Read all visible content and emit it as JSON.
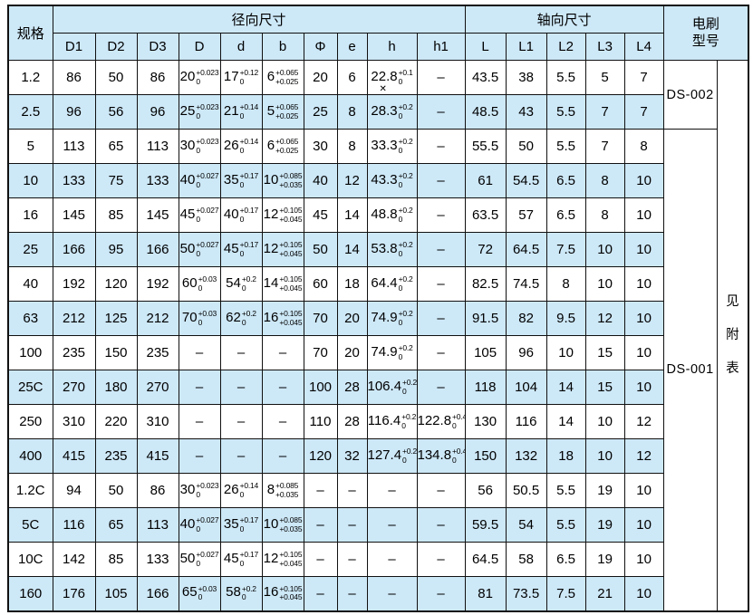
{
  "table": {
    "header": {
      "spec_label": "规格",
      "radial_label": "径向尺寸",
      "axial_label": "轴向尺寸",
      "brush_label_line1": "电刷",
      "brush_label_line2": "型号",
      "radial_cols": [
        "D1",
        "D2",
        "D3",
        "D",
        "d",
        "b",
        "Φ",
        "e",
        "h",
        "h1"
      ],
      "axial_cols": [
        "L",
        "L1",
        "L2",
        "L3",
        "L4"
      ]
    },
    "brush": {
      "groups": [
        {
          "model": "DS-002",
          "from_row": 0,
          "row_count": 2
        },
        {
          "model": "DS-001",
          "from_row": 2,
          "row_count": 14
        }
      ],
      "note_vertical": [
        "见",
        "附",
        "表"
      ]
    },
    "rows": [
      {
        "spec": "1.2",
        "cells": [
          "86",
          "50",
          "86",
          {
            "v": "20",
            "sup": "+0.023",
            "sub": "0"
          },
          {
            "v": "17",
            "sup": "+0.12",
            "sub": "0"
          },
          {
            "v": "6",
            "sup": "+0.065",
            "sub": "+0.025"
          },
          "20",
          "6",
          {
            "v": "22.8",
            "sup": "+0.1",
            "sub": "0",
            "marker": "✕"
          },
          "–",
          "43.5",
          "38",
          "5.5",
          "5",
          "7"
        ]
      },
      {
        "spec": "2.5",
        "cells": [
          "96",
          "56",
          "96",
          {
            "v": "25",
            "sup": "+0.023",
            "sub": "0"
          },
          {
            "v": "21",
            "sup": "+0.14",
            "sub": "0"
          },
          {
            "v": "5",
            "sup": "+0.065",
            "sub": "+0.025"
          },
          "25",
          "8",
          {
            "v": "28.3",
            "sup": "+0.2",
            "sub": "0"
          },
          "–",
          "48.5",
          "43",
          "5.5",
          "7",
          "7"
        ]
      },
      {
        "spec": "5",
        "cells": [
          "113",
          "65",
          "113",
          {
            "v": "30",
            "sup": "+0.023",
            "sub": "0"
          },
          {
            "v": "26",
            "sup": "+0.14",
            "sub": "0"
          },
          {
            "v": "6",
            "sup": "+0.065",
            "sub": "+0.025"
          },
          "30",
          "8",
          {
            "v": "33.3",
            "sup": "+0.2",
            "sub": "0"
          },
          "–",
          "55.5",
          "50",
          "5.5",
          "7",
          "8"
        ]
      },
      {
        "spec": "10",
        "cells": [
          "133",
          "75",
          "133",
          {
            "v": "40",
            "sup": "+0.027",
            "sub": "0"
          },
          {
            "v": "35",
            "sup": "+0.17",
            "sub": "0"
          },
          {
            "v": "10",
            "sup": "+0.085",
            "sub": "+0.035"
          },
          "40",
          "12",
          {
            "v": "43.3",
            "sup": "+0.2",
            "sub": "0"
          },
          "–",
          "61",
          "54.5",
          "6.5",
          "8",
          "10"
        ]
      },
      {
        "spec": "16",
        "cells": [
          "145",
          "85",
          "145",
          {
            "v": "45",
            "sup": "+0.027",
            "sub": "0"
          },
          {
            "v": "40",
            "sup": "+0.17",
            "sub": "0"
          },
          {
            "v": "12",
            "sup": "+0.105",
            "sub": "+0.045"
          },
          "45",
          "14",
          {
            "v": "48.8",
            "sup": "+0.2",
            "sub": "0"
          },
          "–",
          "63.5",
          "57",
          "6.5",
          "8",
          "10"
        ]
      },
      {
        "spec": "25",
        "cells": [
          "166",
          "95",
          "166",
          {
            "v": "50",
            "sup": "+0.027",
            "sub": "0"
          },
          {
            "v": "45",
            "sup": "+0.17",
            "sub": "0"
          },
          {
            "v": "12",
            "sup": "+0.105",
            "sub": "+0.045"
          },
          "50",
          "14",
          {
            "v": "53.8",
            "sup": "+0.2",
            "sub": "0"
          },
          "–",
          "72",
          "64.5",
          "7.5",
          "10",
          "10"
        ]
      },
      {
        "spec": "40",
        "cells": [
          "192",
          "120",
          "192",
          {
            "v": "60",
            "sup": "+0.03",
            "sub": "0"
          },
          {
            "v": "54",
            "sup": "+0.2",
            "sub": "0"
          },
          {
            "v": "14",
            "sup": "+0.105",
            "sub": "+0.045"
          },
          "60",
          "18",
          {
            "v": "64.4",
            "sup": "+0.2",
            "sub": "0"
          },
          "–",
          "82.5",
          "74.5",
          "8",
          "10",
          "10"
        ]
      },
      {
        "spec": "63",
        "cells": [
          "212",
          "125",
          "212",
          {
            "v": "70",
            "sup": "+0.03",
            "sub": "0"
          },
          {
            "v": "62",
            "sup": "+0.2",
            "sub": "0"
          },
          {
            "v": "16",
            "sup": "+0.105",
            "sub": "+0.045"
          },
          "70",
          "20",
          {
            "v": "74.9",
            "sup": "+0.2",
            "sub": "0"
          },
          "–",
          "91.5",
          "82",
          "9.5",
          "12",
          "10"
        ]
      },
      {
        "spec": "100",
        "cells": [
          "235",
          "150",
          "235",
          "–",
          "–",
          "–",
          "70",
          "20",
          {
            "v": "74.9",
            "sup": "+0.2",
            "sub": "0"
          },
          "–",
          "105",
          "96",
          "10",
          "15",
          "10"
        ]
      },
      {
        "spec": "25C",
        "cells": [
          "270",
          "180",
          "270",
          "–",
          "–",
          "–",
          "100",
          "28",
          {
            "v": "106.4",
            "sup": "+0.2",
            "sub": "0"
          },
          "–",
          "118",
          "104",
          "14",
          "15",
          "10"
        ]
      },
      {
        "spec": "250",
        "cells": [
          "310",
          "220",
          "310",
          "–",
          "–",
          "–",
          "110",
          "28",
          {
            "v": "116.4",
            "sup": "+0.2",
            "sub": "0"
          },
          {
            "v": "122.8",
            "sup": "+0.4",
            "sub": "0"
          },
          "130",
          "116",
          "14",
          "10",
          "12"
        ]
      },
      {
        "spec": "400",
        "cells": [
          "415",
          "235",
          "415",
          "–",
          "–",
          "–",
          "120",
          "32",
          {
            "v": "127.4",
            "sup": "+0.2",
            "sub": "0"
          },
          {
            "v": "134.8",
            "sup": "+0.4",
            "sub": "0"
          },
          "150",
          "132",
          "18",
          "10",
          "12"
        ]
      },
      {
        "spec": "1.2C",
        "cells": [
          "94",
          "50",
          "86",
          {
            "v": "30",
            "sup": "+0.023",
            "sub": "0"
          },
          {
            "v": "26",
            "sup": "+0.14",
            "sub": "0"
          },
          {
            "v": "8",
            "sup": "+0.085",
            "sub": "+0.035"
          },
          "–",
          "–",
          "–",
          "–",
          "56",
          "50.5",
          "5.5",
          "19",
          "10"
        ]
      },
      {
        "spec": "5C",
        "cells": [
          "116",
          "65",
          "113",
          {
            "v": "40",
            "sup": "+0.027",
            "sub": "0"
          },
          {
            "v": "35",
            "sup": "+0.17",
            "sub": "0"
          },
          {
            "v": "10",
            "sup": "+0.085",
            "sub": "+0.035"
          },
          "–",
          "–",
          "–",
          "–",
          "59.5",
          "54",
          "5.5",
          "19",
          "10"
        ]
      },
      {
        "spec": "10C",
        "cells": [
          "142",
          "85",
          "133",
          {
            "v": "50",
            "sup": "+0.027",
            "sub": "0"
          },
          {
            "v": "45",
            "sup": "+0.17",
            "sub": "0"
          },
          {
            "v": "12",
            "sup": "+0.105",
            "sub": "+0.045"
          },
          "–",
          "–",
          "–",
          "–",
          "64.5",
          "58",
          "6.5",
          "19",
          "10"
        ]
      },
      {
        "spec": "160",
        "cells": [
          "176",
          "105",
          "166",
          {
            "v": "65",
            "sup": "+0.03",
            "sub": "0"
          },
          {
            "v": "58",
            "sup": "+0.2",
            "sub": "0"
          },
          {
            "v": "16",
            "sup": "+0.105",
            "sub": "+0.045"
          },
          "–",
          "–",
          "–",
          "–",
          "81",
          "73.5",
          "7.5",
          "21",
          "10"
        ]
      }
    ]
  },
  "colors": {
    "row_alt_bg": "#cde8f7",
    "header_bg": "#cde8f7",
    "border": "#111111",
    "text": "#000000",
    "page_bg": "#ffffff"
  }
}
